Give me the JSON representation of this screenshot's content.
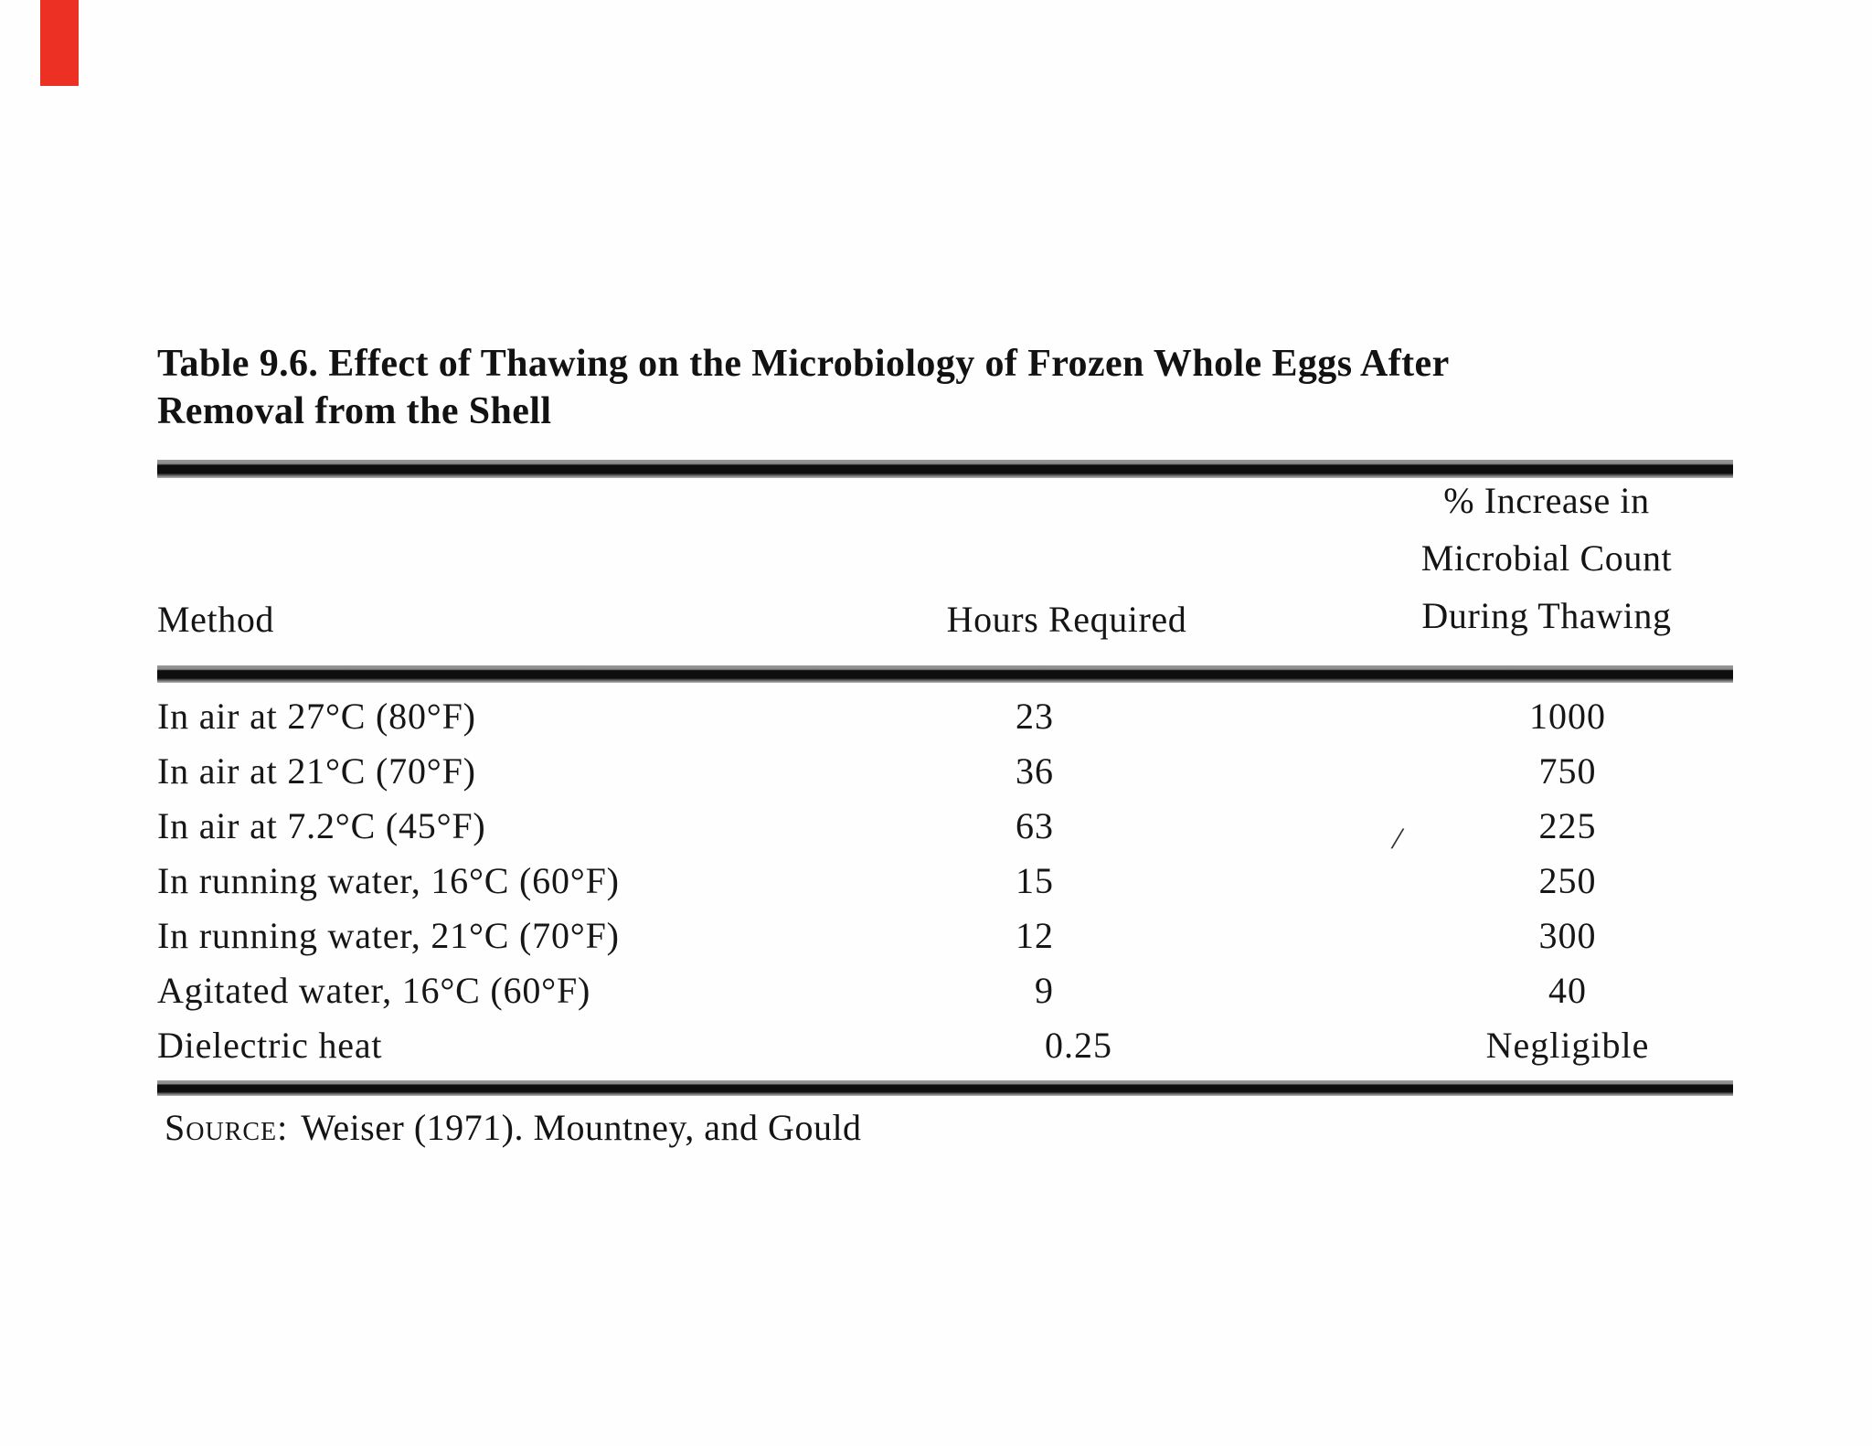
{
  "page": {
    "red_marker_color": "#ec3023"
  },
  "title": {
    "line1": "Table 9.6. Effect of Thawing on the Microbiology of Frozen Whole Eggs After",
    "line2": "Removal from the Shell"
  },
  "table": {
    "headers": {
      "method": "Method",
      "hours": "Hours Required",
      "increase_lines": [
        "% Increase in",
        "Microbial Count",
        "During Thawing"
      ]
    },
    "rows": [
      {
        "method": "In air at 27°C (80°F)",
        "hours": "23",
        "increase": "1000"
      },
      {
        "method": "In air at 21°C (70°F)",
        "hours": "36",
        "increase": "750"
      },
      {
        "method": "In air at 7.2°C (45°F)",
        "hours": "63",
        "increase": "225"
      },
      {
        "method": "In running water, 16°C (60°F)",
        "hours": "15",
        "increase": "250"
      },
      {
        "method": "In running water, 21°C (70°F)",
        "hours": "12",
        "increase": "300"
      },
      {
        "method": "Agitated water, 16°C (60°F)",
        "hours": "9",
        "increase": "40"
      },
      {
        "method": "Dielectric heat",
        "hours": "0.25",
        "increase": "Negligible"
      }
    ]
  },
  "artifacts": {
    "stray_mark": "/"
  },
  "source": {
    "label": "Source:",
    "text": "Weiser (1971). Mountney, and Gould"
  }
}
